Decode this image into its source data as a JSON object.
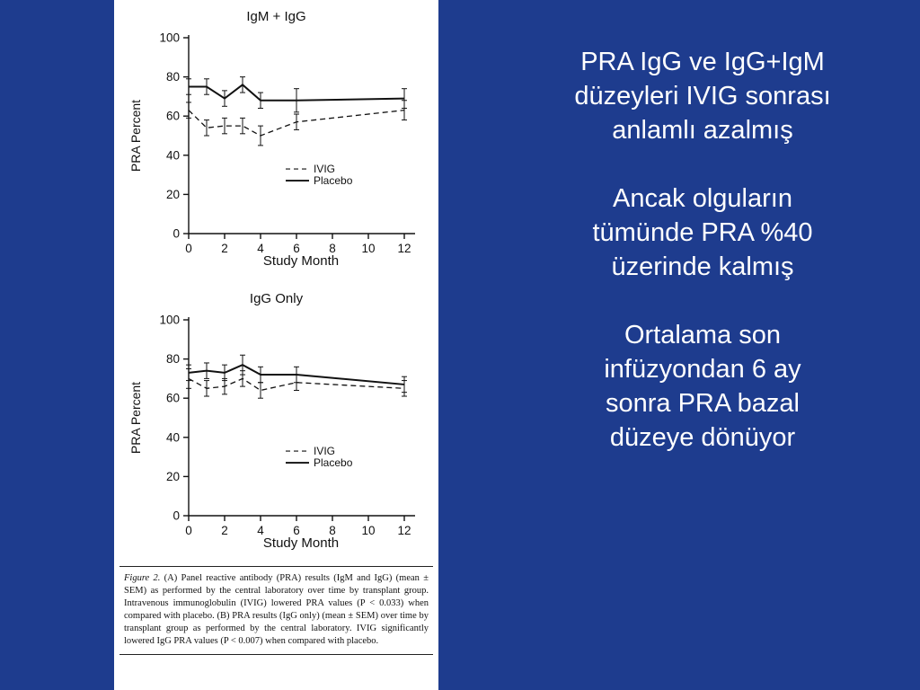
{
  "slide": {
    "background_color": "#1e3c8e",
    "panel_color": "#ffffff",
    "text_color": "#ffffff"
  },
  "right_panel": {
    "paragraphs": [
      {
        "text": "PRA IgG ve IgG+IgM\ndüzeyleri IVIG sonrası\nanlamlı azalmış"
      },
      {
        "text": "Ancak olguların\ntümünde PRA %40\nüzerinde kalmış"
      },
      {
        "text": "Ortalama son\ninfüzyondan 6 ay\nsonra PRA bazal\ndüzeye dönüyor"
      }
    ]
  },
  "caption": {
    "lead": "Figure 2.",
    "body": " (A) Panel reactive antibody (PRA) results (IgM and IgG) (mean ± SEM) as performed by the central laboratory over time by transplant group. Intravenous immunoglobulin (IVIG) lowered PRA values (P < 0.033) when compared with placebo. (B) PRA results (IgG only) (mean ± SEM) over time by transplant group as performed by the central laboratory. IVIG significantly lowered IgG PRA values (P < 0.007) when compared with placebo."
  },
  "chart_data": [
    {
      "type": "line",
      "title": "IgM + IgG",
      "xlabel": "Study Month",
      "ylabel": "PRA Percent",
      "xlim": [
        0,
        12.6
      ],
      "ylim": [
        0,
        100
      ],
      "xticks": [
        0,
        2,
        4,
        6,
        8,
        10,
        12
      ],
      "yticks": [
        0,
        20,
        40,
        60,
        80,
        100
      ],
      "x": [
        0,
        1,
        2,
        3,
        4,
        6,
        12
      ],
      "grid": false,
      "legend_position": "inside-right",
      "series": [
        {
          "name": "IVIG",
          "style": "dashed",
          "values": [
            63,
            54,
            55,
            55,
            50,
            57,
            63
          ],
          "errors": [
            4,
            4,
            4,
            4,
            5,
            4,
            5
          ]
        },
        {
          "name": "Placebo",
          "style": "solid",
          "values": [
            75,
            75,
            69,
            76,
            68,
            68,
            69
          ],
          "errors": [
            4,
            4,
            4,
            4,
            4,
            6,
            5
          ]
        }
      ]
    },
    {
      "type": "line",
      "title": "IgG Only",
      "xlabel": "Study Month",
      "ylabel": "PRA Percent",
      "xlim": [
        0,
        12.6
      ],
      "ylim": [
        0,
        100
      ],
      "xticks": [
        0,
        2,
        4,
        6,
        8,
        10,
        12
      ],
      "yticks": [
        0,
        20,
        40,
        60,
        80,
        100
      ],
      "x": [
        0,
        1,
        2,
        3,
        4,
        6,
        12
      ],
      "grid": false,
      "legend_position": "inside-right",
      "series": [
        {
          "name": "IVIG",
          "style": "dashed",
          "values": [
            70,
            65,
            66,
            70,
            64,
            68,
            65
          ],
          "errors": [
            5,
            4,
            4,
            4,
            4,
            4,
            4
          ]
        },
        {
          "name": "Placebo",
          "style": "solid",
          "values": [
            73,
            74,
            73,
            77,
            72,
            72,
            67
          ],
          "errors": [
            4,
            4,
            4,
            5,
            4,
            4,
            4
          ]
        }
      ]
    }
  ]
}
